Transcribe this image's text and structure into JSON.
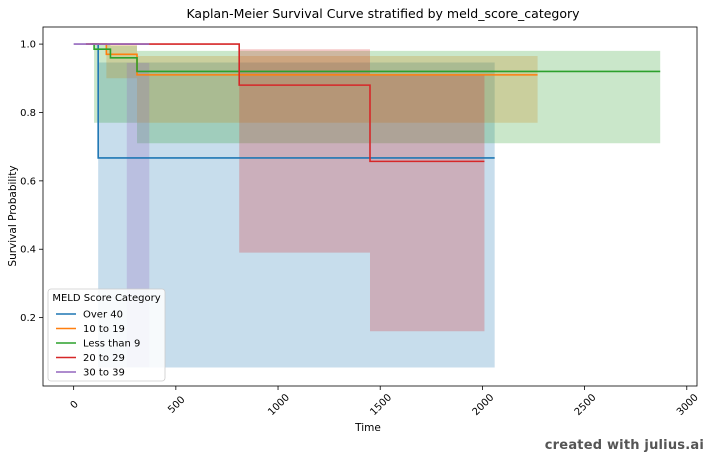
{
  "chart_data": {
    "type": "line",
    "title": "Kaplan-Meier Survival Curve stratified by meld_score_category",
    "xlabel": "Time",
    "ylabel": "Survival Probability",
    "xlim": [
      -150,
      3050
    ],
    "ylim": [
      0.0,
      1.05
    ],
    "xticks": [
      "0",
      "500",
      "1000",
      "1500",
      "2000",
      "2500",
      "3000"
    ],
    "xtick_values": [
      0,
      500,
      1000,
      1500,
      2000,
      2500,
      3000
    ],
    "yticks": [
      "0.2",
      "0.4",
      "0.6",
      "0.8",
      "1.0"
    ],
    "ytick_values": [
      0.2,
      0.4,
      0.6,
      0.8,
      1.0
    ],
    "grid": false,
    "legend_title": "MELD Score Category",
    "legend_position": "lower-left",
    "series": [
      {
        "name": "Over 40",
        "color": "#1f77b4",
        "x": [
          80,
          120,
          2060
        ],
        "y": [
          1.0,
          0.667,
          0.667
        ],
        "ci_lower": [
          1.0,
          0.054,
          0.054
        ],
        "ci_upper": [
          1.0,
          0.946,
          0.946
        ]
      },
      {
        "name": "10 to 19",
        "color": "#ff7f0e",
        "x": [
          60,
          160,
          310,
          2270
        ],
        "y": [
          1.0,
          0.97,
          0.91,
          0.91
        ],
        "ci_lower": [
          1.0,
          0.9,
          0.77,
          0.77
        ],
        "ci_upper": [
          1.0,
          1.0,
          0.965,
          0.965
        ]
      },
      {
        "name": "Less than 9",
        "color": "#2ca02c",
        "x": [
          90,
          100,
          180,
          310,
          2870
        ],
        "y": [
          1.0,
          0.985,
          0.96,
          0.92,
          0.92
        ],
        "ci_lower": [
          1.0,
          0.77,
          0.77,
          0.71,
          0.71
        ],
        "ci_upper": [
          1.0,
          1.0,
          0.995,
          0.98,
          0.98
        ]
      },
      {
        "name": "20 to 29",
        "color": "#d62728",
        "x": [
          60,
          810,
          1450,
          2010
        ],
        "y": [
          1.0,
          0.88,
          0.657,
          0.657
        ],
        "ci_lower": [
          1.0,
          0.39,
          0.16,
          0.16
        ],
        "ci_upper": [
          1.0,
          0.985,
          0.91,
          0.91
        ]
      },
      {
        "name": "30 to 39",
        "color": "#9467bd",
        "x": [
          0,
          260,
          370
        ],
        "y": [
          1.0,
          1.0,
          1.0
        ],
        "ci_lower": [
          1.0,
          0.055,
          0.055
        ],
        "ci_upper": [
          1.0,
          0.945,
          0.945
        ]
      }
    ]
  },
  "watermark": "created with julius.ai"
}
